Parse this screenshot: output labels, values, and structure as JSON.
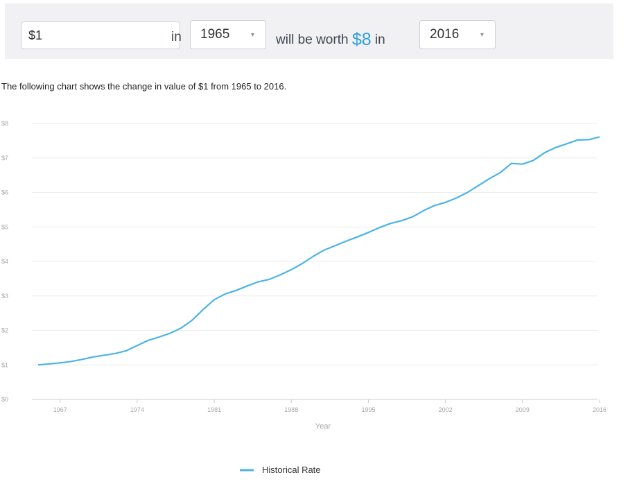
{
  "calculator": {
    "amount_value": "$1",
    "word_in_1": "in",
    "start_year": "1965",
    "worth_prefix": "will be worth",
    "worth_value": "$8",
    "word_in_2": "in",
    "end_year": "2016",
    "caret": "▾"
  },
  "caption": "The following chart shows the change in value of $1 from 1965 to 2016.",
  "colors": {
    "line": "#4ab3ea",
    "accent": "#2f9fe0",
    "grid": "#ececec",
    "axis": "#cccccc",
    "panel": "#f1f1f3"
  },
  "chart_data": {
    "type": "line",
    "x": [
      1965,
      1966,
      1967,
      1968,
      1969,
      1970,
      1971,
      1972,
      1973,
      1974,
      1975,
      1976,
      1977,
      1978,
      1979,
      1980,
      1981,
      1982,
      1983,
      1984,
      1985,
      1986,
      1987,
      1988,
      1989,
      1990,
      1991,
      1992,
      1993,
      1994,
      1995,
      1996,
      1997,
      1998,
      1999,
      2000,
      2001,
      2002,
      2003,
      2004,
      2005,
      2006,
      2007,
      2008,
      2009,
      2010,
      2011,
      2012,
      2013,
      2014,
      2015,
      2016
    ],
    "series": [
      {
        "name": "Historical Rate",
        "values": [
          1.0,
          1.03,
          1.06,
          1.1,
          1.16,
          1.23,
          1.28,
          1.33,
          1.41,
          1.56,
          1.71,
          1.81,
          1.92,
          2.07,
          2.3,
          2.61,
          2.89,
          3.06,
          3.16,
          3.29,
          3.41,
          3.48,
          3.61,
          3.76,
          3.94,
          4.15,
          4.33,
          4.46,
          4.59,
          4.71,
          4.84,
          4.98,
          5.1,
          5.18,
          5.29,
          5.47,
          5.62,
          5.71,
          5.84,
          6.0,
          6.2,
          6.4,
          6.58,
          6.84,
          6.82,
          6.93,
          7.15,
          7.3,
          7.41,
          7.52,
          7.53,
          7.61
        ]
      }
    ],
    "xlabel": "Year",
    "ylabel": "",
    "ylim": [
      0,
      8
    ],
    "xlim": [
      1965,
      2016
    ],
    "x_ticks": [
      1967,
      1974,
      1981,
      1988,
      1995,
      2002,
      2009,
      2016
    ],
    "x_tick_labels": [
      "1967",
      "1974",
      "1981",
      "1988",
      "1995",
      "2002",
      "2009",
      "2016"
    ],
    "y_ticks": [
      0,
      1,
      2,
      3,
      4,
      5,
      6,
      7,
      8
    ],
    "y_tick_labels": [
      "$0",
      "$1",
      "$2",
      "$3",
      "$4",
      "$5",
      "$6",
      "$7",
      "$8"
    ],
    "grid": true,
    "legend_position": "bottom-center"
  }
}
